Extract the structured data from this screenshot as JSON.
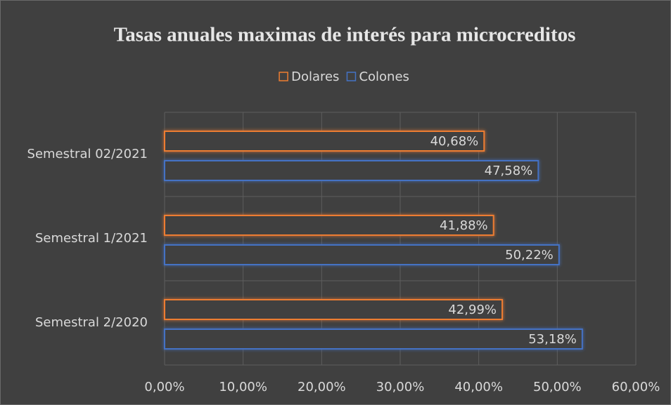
{
  "chart_data": {
    "type": "barh",
    "title": "Tasas anuales maximas de interés para microcreditos",
    "categories": [
      "Semestral 02/2021",
      "Semestral 1/2021",
      "Semestral 2/2020"
    ],
    "series": [
      {
        "name": "Dolares",
        "color": "#ed7d31",
        "values": [
          40.68,
          41.88,
          42.99
        ],
        "value_labels": [
          "40,68%",
          "41,88%",
          "42,99%"
        ]
      },
      {
        "name": "Colones",
        "color": "#4472c4",
        "values": [
          47.58,
          50.22,
          53.18
        ],
        "value_labels": [
          "47,58%",
          "50,22%",
          "53,18%"
        ]
      }
    ],
    "xlim": [
      0,
      60
    ],
    "xticks": [
      {
        "value": 0,
        "label": "0,00%"
      },
      {
        "value": 10,
        "label": "10,00%"
      },
      {
        "value": 20,
        "label": "20,00%"
      },
      {
        "value": 30,
        "label": "30,00%"
      },
      {
        "value": 40,
        "label": "40,00%"
      },
      {
        "value": 50,
        "label": "50,00%"
      },
      {
        "value": 60,
        "label": "60,00%"
      }
    ],
    "grid": true,
    "legend": "top"
  }
}
